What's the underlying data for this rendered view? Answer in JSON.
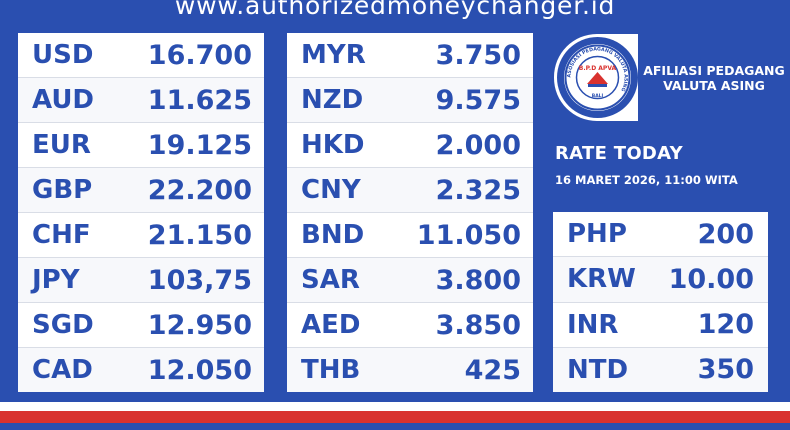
{
  "header": {
    "url": "www.authorizedmoneychanger.id"
  },
  "rates_left": [
    {
      "code": "USD",
      "value": "16.700"
    },
    {
      "code": "AUD",
      "value": "11.625"
    },
    {
      "code": "EUR",
      "value": "19.125"
    },
    {
      "code": "GBP",
      "value": "22.200"
    },
    {
      "code": "CHF",
      "value": "21.150"
    },
    {
      "code": "JPY",
      "value": "103,75"
    },
    {
      "code": "SGD",
      "value": "12.950"
    },
    {
      "code": "CAD",
      "value": "12.050"
    }
  ],
  "rates_middle": [
    {
      "code": "MYR",
      "value": "3.750"
    },
    {
      "code": "NZD",
      "value": "9.575"
    },
    {
      "code": "HKD",
      "value": "2.000"
    },
    {
      "code": "CNY",
      "value": "2.325"
    },
    {
      "code": "BND",
      "value": "11.050"
    },
    {
      "code": "SAR",
      "value": "3.800"
    },
    {
      "code": "AED",
      "value": "3.850"
    },
    {
      "code": "THB",
      "value": "425"
    }
  ],
  "rates_right": [
    {
      "code": "PHP",
      "value": "200"
    },
    {
      "code": "KRW",
      "value": "10.00"
    },
    {
      "code": "INR",
      "value": "120"
    },
    {
      "code": "NTD",
      "value": "350"
    }
  ],
  "badge": {
    "logo_text": "B.P.D APVA",
    "logo_ring_text": "ASOSIASI PEDAGANG VALUTA ASING",
    "logo_region": "BALI",
    "line1": "AFILIASI PEDAGANG",
    "line2": "VALUTA ASING"
  },
  "rate_info": {
    "title": "RATE TODAY",
    "date": "16 MARET 2026, 11:00 WITA"
  },
  "colors": {
    "background": "#2a4fb0",
    "text_blue": "#2a4fb0",
    "red": "#d9322f",
    "white": "#ffffff"
  }
}
